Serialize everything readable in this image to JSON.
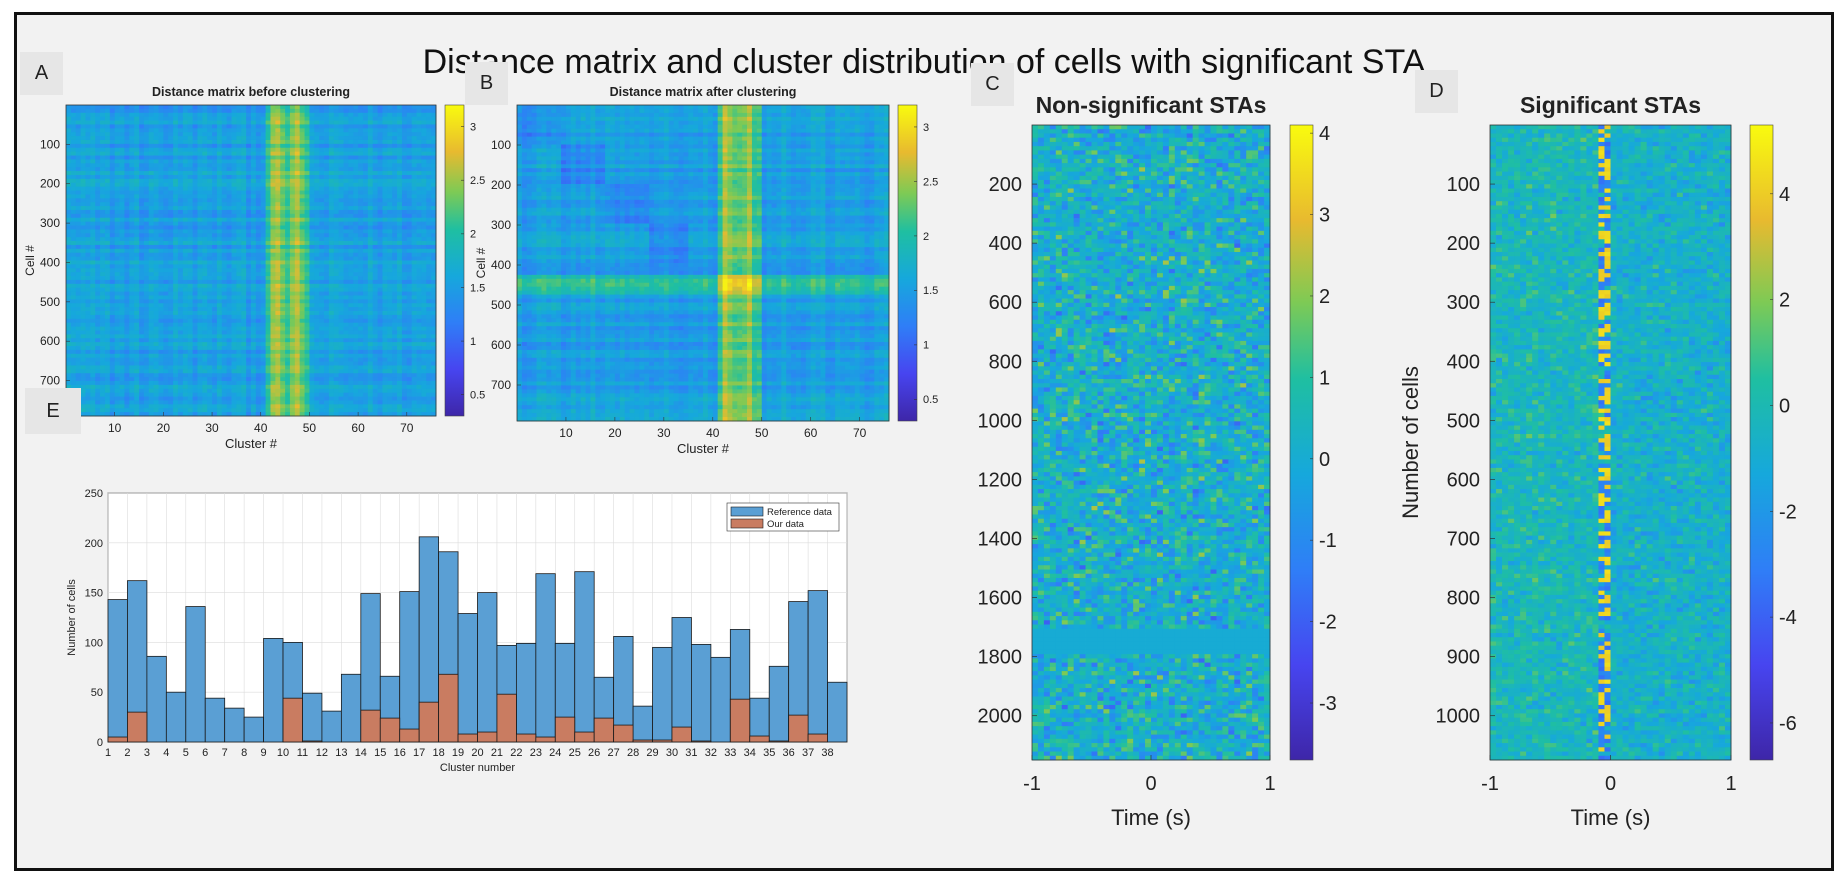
{
  "title": "Distance matrix and cluster distribution of cells with significant STA",
  "panel_letters": {
    "a": "A",
    "b": "B",
    "c": "C",
    "d": "D",
    "e": "E"
  },
  "colors": {
    "parula_low": "#3e26a8",
    "parula_mid": "#12b1cf",
    "parula_high": "#f9fb0e",
    "ref_bar": "#5a9fd4",
    "our_bar": "#c97c61"
  },
  "chart_data": [
    {
      "id": "A",
      "type": "heatmap",
      "title": "Distance matrix before clustering",
      "xlabel": "Cluster #",
      "ylabel": "Cell #",
      "xlim": [
        0,
        76
      ],
      "ylim": [
        0,
        790
      ],
      "xticks": [
        "10",
        "20",
        "30",
        "40",
        "50",
        "60",
        "70"
      ],
      "yticks": [
        "100",
        "200",
        "300",
        "400",
        "500",
        "600",
        "700"
      ],
      "colorbar_ticks": [
        "0.5",
        "1",
        "1.5",
        "2",
        "2.5",
        "3"
      ],
      "clim": [
        0.3,
        3.2
      ],
      "bright_column_range": [
        41,
        49
      ]
    },
    {
      "id": "B",
      "type": "heatmap",
      "title": "Distance matrix after clustering",
      "xlabel": "Cluster #",
      "ylabel": "Cell #",
      "xlim": [
        0,
        76
      ],
      "ylim": [
        0,
        790
      ],
      "xticks": [
        "10",
        "20",
        "30",
        "40",
        "50",
        "60",
        "70"
      ],
      "yticks": [
        "100",
        "200",
        "300",
        "400",
        "500",
        "600",
        "700"
      ],
      "colorbar_ticks": [
        "0.5",
        "1",
        "1.5",
        "2",
        "2.5",
        "3"
      ],
      "clim": [
        0.3,
        3.2
      ],
      "bright_column_range": [
        41,
        49
      ],
      "bright_row_range": [
        420,
        465
      ]
    },
    {
      "id": "C",
      "type": "heatmap",
      "title": "Non-significant STAs",
      "xlabel": "Time (s)",
      "ylabel": "",
      "xlim": [
        -1,
        1
      ],
      "ylim": [
        0,
        2150
      ],
      "xticks": [
        "-1",
        "0",
        "1"
      ],
      "yticks": [
        "200",
        "400",
        "600",
        "800",
        "1000",
        "1200",
        "1400",
        "1600",
        "1800",
        "2000"
      ],
      "colorbar_ticks": [
        "4",
        "3",
        "2",
        "1",
        "0",
        "-1",
        "-2",
        "-3"
      ],
      "clim": [
        -3.7,
        4.1
      ],
      "uniform_band_rows": [
        1700,
        1790
      ]
    },
    {
      "id": "D",
      "type": "heatmap",
      "title": "Significant STAs",
      "xlabel": "Time (s)",
      "ylabel": "Number of cells",
      "xlim": [
        -1,
        1
      ],
      "ylim": [
        0,
        1075
      ],
      "xticks": [
        "-1",
        "0",
        "1"
      ],
      "yticks": [
        "100",
        "200",
        "300",
        "400",
        "500",
        "600",
        "700",
        "800",
        "900",
        "1000"
      ],
      "colorbar_ticks": [
        "4",
        "2",
        "0",
        "-2",
        "-4",
        "-6"
      ],
      "clim": [
        -6.7,
        5.3
      ],
      "response_time_s": -0.05
    },
    {
      "id": "E",
      "type": "bar",
      "title": "",
      "xlabel": "Cluster number",
      "ylabel": "Number of cells",
      "ylim": [
        0,
        250
      ],
      "yticks": [
        "0",
        "50",
        "100",
        "150",
        "200",
        "250"
      ],
      "categories": [
        "1",
        "2",
        "3",
        "4",
        "5",
        "6",
        "7",
        "8",
        "9",
        "10",
        "11",
        "12",
        "13",
        "14",
        "15",
        "16",
        "17",
        "18",
        "19",
        "20",
        "21",
        "22",
        "23",
        "24",
        "25",
        "26",
        "27",
        "28",
        "29",
        "30",
        "31",
        "32",
        "33",
        "34",
        "35",
        "36",
        "37",
        "38"
      ],
      "series": [
        {
          "name": "Reference data",
          "values": [
            143,
            162,
            86,
            50,
            136,
            44,
            34,
            25,
            104,
            100,
            49,
            31,
            68,
            149,
            66,
            151,
            206,
            191,
            129,
            150,
            97,
            99,
            169,
            99,
            171,
            65,
            106,
            36,
            95,
            125,
            98,
            85,
            113,
            44,
            76,
            141,
            152,
            60
          ]
        },
        {
          "name": "Our data",
          "values": [
            5,
            30,
            0,
            0,
            0,
            0,
            0,
            0,
            0,
            44,
            1,
            0,
            0,
            32,
            24,
            13,
            40,
            68,
            8,
            10,
            48,
            8,
            5,
            25,
            10,
            24,
            17,
            2,
            2,
            15,
            1,
            0,
            43,
            6,
            1,
            27,
            8,
            0
          ]
        }
      ],
      "legend_position": "top-right"
    }
  ]
}
